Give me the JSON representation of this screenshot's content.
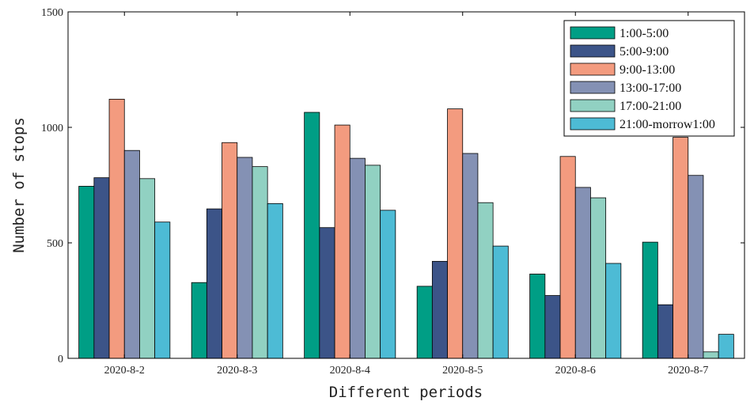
{
  "chart_data": {
    "type": "bar",
    "title": "",
    "xlabel": "Different periods",
    "ylabel": "Number of stops",
    "ylim": [
      0,
      1500
    ],
    "yticks": [
      0,
      500,
      1000,
      1500
    ],
    "grid": false,
    "legend_position": "top-right",
    "categories": [
      "2020-8-2",
      "2020-8-3",
      "2020-8-4",
      "2020-8-5",
      "2020-8-6",
      "2020-8-7"
    ],
    "series": [
      {
        "name": "1:00-5:00",
        "color": "#009E85",
        "values": [
          745,
          328,
          1065,
          312,
          365,
          503
        ]
      },
      {
        "name": "5:00-9:00",
        "color": "#3C5488",
        "values": [
          782,
          647,
          566,
          420,
          272,
          232
        ]
      },
      {
        "name": "9:00-13:00",
        "color": "#F39B7F",
        "values": [
          1122,
          934,
          1010,
          1080,
          874,
          957
        ]
      },
      {
        "name": "13:00-17:00",
        "color": "#8491B4",
        "values": [
          900,
          870,
          866,
          887,
          740,
          792
        ]
      },
      {
        "name": "17:00-21:00",
        "color": "#91D1C2",
        "values": [
          778,
          830,
          836,
          674,
          695,
          28
        ]
      },
      {
        "name": "21:00-morrow1:00",
        "color": "#4DBBD5",
        "values": [
          590,
          670,
          641,
          486,
          411,
          104
        ]
      }
    ]
  }
}
